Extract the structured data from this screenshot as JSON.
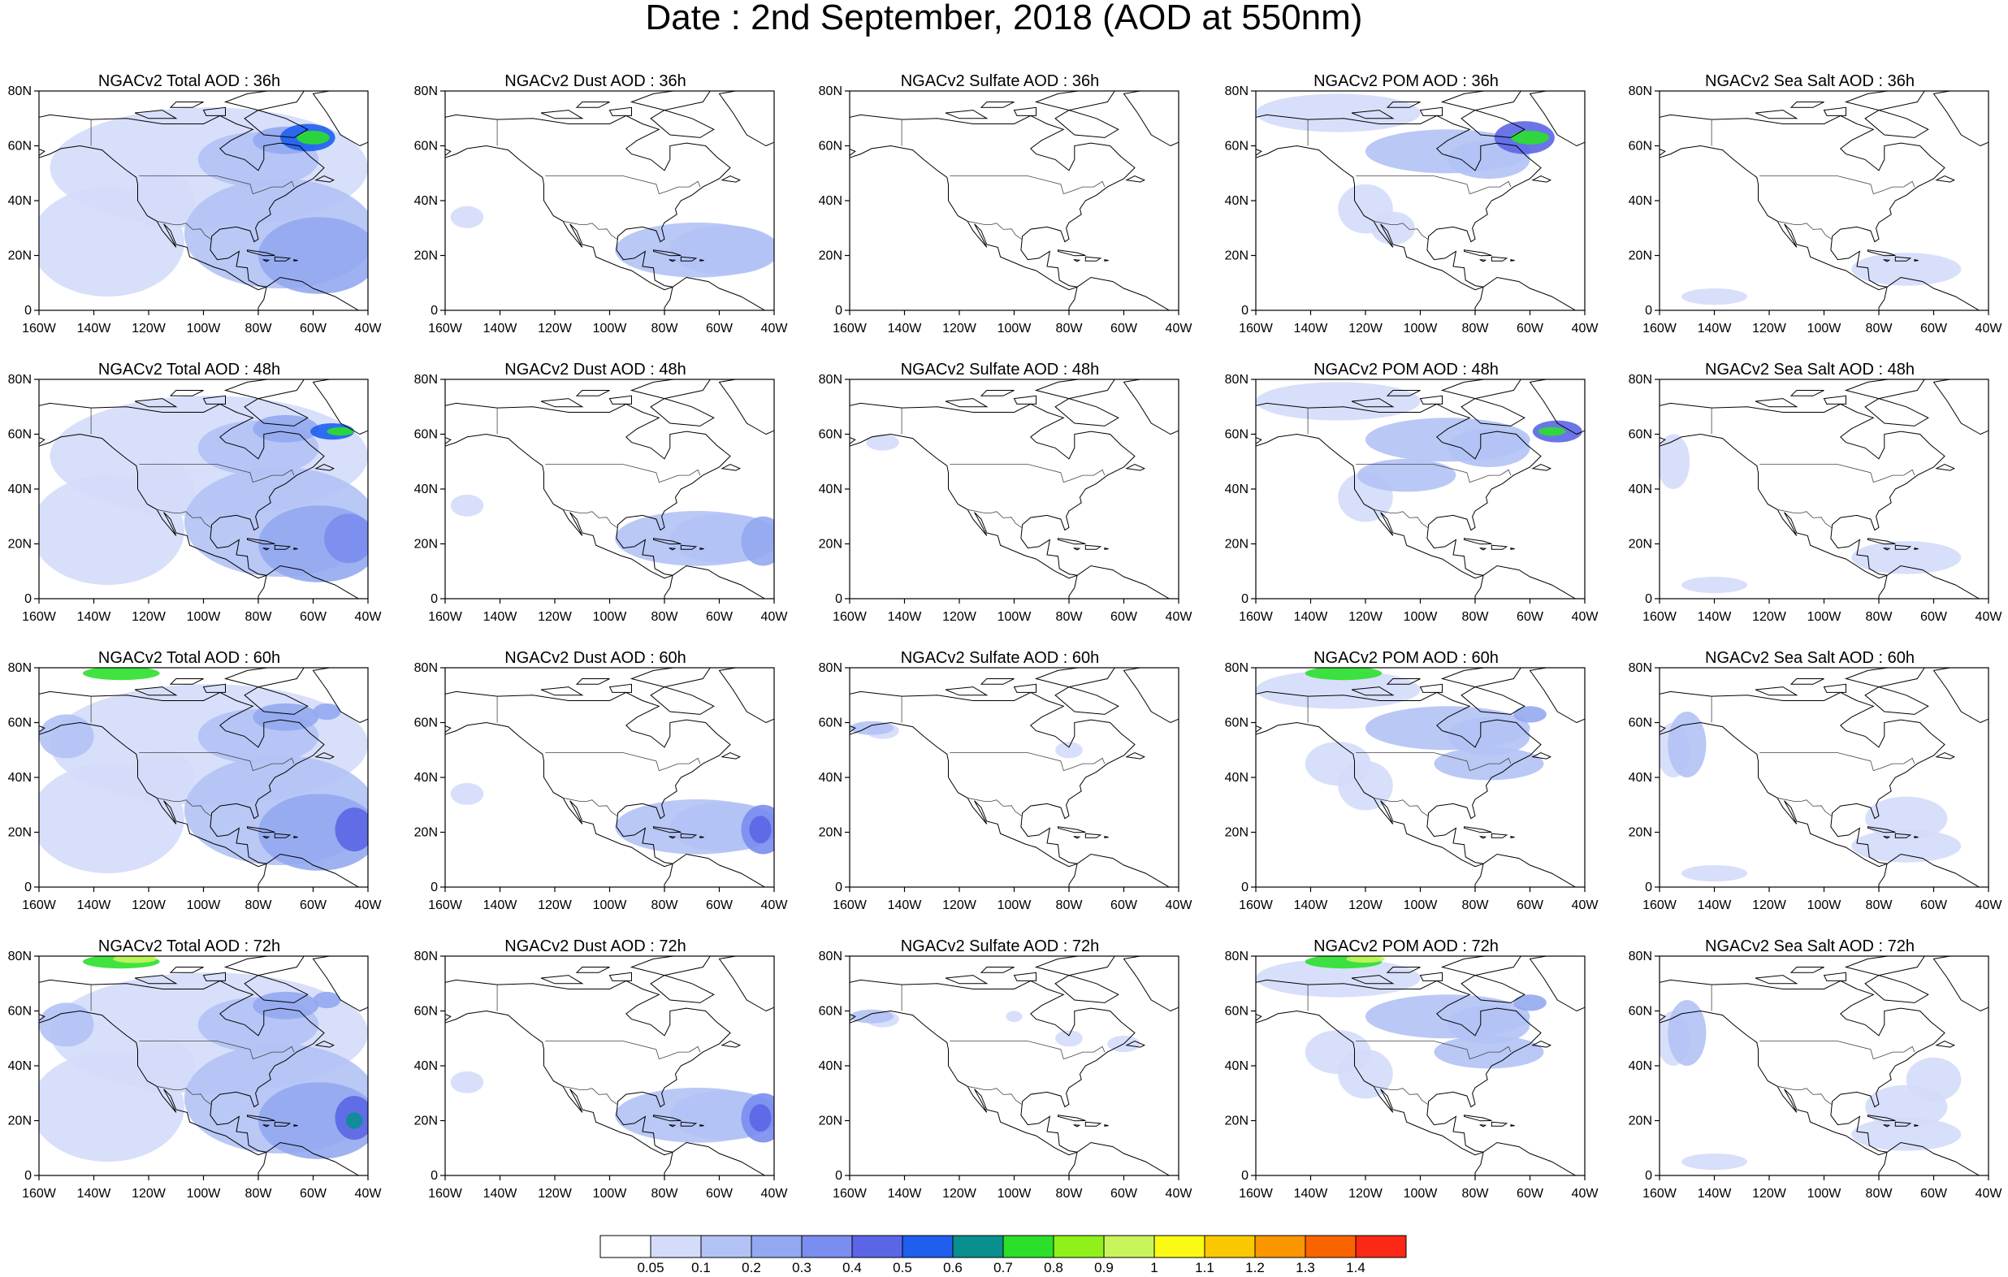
{
  "figure": {
    "title": "Date : 2nd September, 2018 (AOD at 550nm)"
  },
  "axes": {
    "y_labels": [
      "80N",
      "60N",
      "40N",
      "20N",
      "0"
    ],
    "x_labels": [
      "160W",
      "140W",
      "120W",
      "100W",
      "80W",
      "60W",
      "40W"
    ],
    "lon_range": [
      -160,
      -40
    ],
    "lat_range": [
      0,
      80
    ]
  },
  "panels": [
    {
      "title": "NGACv2 Total AOD : 36h",
      "species": "total",
      "hour": 36
    },
    {
      "title": "NGACv2 Dust AOD : 36h",
      "species": "dust",
      "hour": 36
    },
    {
      "title": "NGACv2 Sulfate AOD : 36h",
      "species": "sulfate",
      "hour": 36
    },
    {
      "title": "NGACv2 POM AOD : 36h",
      "species": "pom",
      "hour": 36
    },
    {
      "title": "NGACv2 Sea Salt AOD : 36h",
      "species": "seasalt",
      "hour": 36
    },
    {
      "title": "NGACv2 Total AOD : 48h",
      "species": "total",
      "hour": 48
    },
    {
      "title": "NGACv2 Dust AOD : 48h",
      "species": "dust",
      "hour": 48
    },
    {
      "title": "NGACv2 Sulfate AOD : 48h",
      "species": "sulfate",
      "hour": 48
    },
    {
      "title": "NGACv2 POM AOD : 48h",
      "species": "pom",
      "hour": 48
    },
    {
      "title": "NGACv2 Sea Salt AOD : 48h",
      "species": "seasalt",
      "hour": 48
    },
    {
      "title": "NGACv2 Total AOD : 60h",
      "species": "total",
      "hour": 60
    },
    {
      "title": "NGACv2 Dust AOD : 60h",
      "species": "dust",
      "hour": 60
    },
    {
      "title": "NGACv2 Sulfate AOD : 60h",
      "species": "sulfate",
      "hour": 60
    },
    {
      "title": "NGACv2 POM AOD : 60h",
      "species": "pom",
      "hour": 60
    },
    {
      "title": "NGACv2 Sea Salt AOD : 60h",
      "species": "seasalt",
      "hour": 60
    },
    {
      "title": "NGACv2 Total AOD : 72h",
      "species": "total",
      "hour": 72
    },
    {
      "title": "NGACv2 Dust AOD : 72h",
      "species": "dust",
      "hour": 72
    },
    {
      "title": "NGACv2 Sulfate AOD : 72h",
      "species": "sulfate",
      "hour": 72
    },
    {
      "title": "NGACv2 POM AOD : 72h",
      "species": "pom",
      "hour": 72
    },
    {
      "title": "NGACv2 Sea Salt  AOD : 72h",
      "species": "seasalt",
      "hour": 72
    }
  ],
  "colorbar": {
    "labels": [
      "0.05",
      "0.1",
      "0.2",
      "0.3",
      "0.4",
      "0.5",
      "0.6",
      "0.7",
      "0.8",
      "0.9",
      "1",
      "1.1",
      "1.2",
      "1.3",
      "1.4"
    ],
    "colors": [
      "#ffffff",
      "#d4dcfa",
      "#b3c2f5",
      "#93a8f0",
      "#7a8df0",
      "#5b66e6",
      "#1e5ff0",
      "#0a8f8f",
      "#2be02b",
      "#8ff01a",
      "#c8f55a",
      "#fafa14",
      "#fac800",
      "#fa9600",
      "#fa6400",
      "#fa2814"
    ]
  }
}
